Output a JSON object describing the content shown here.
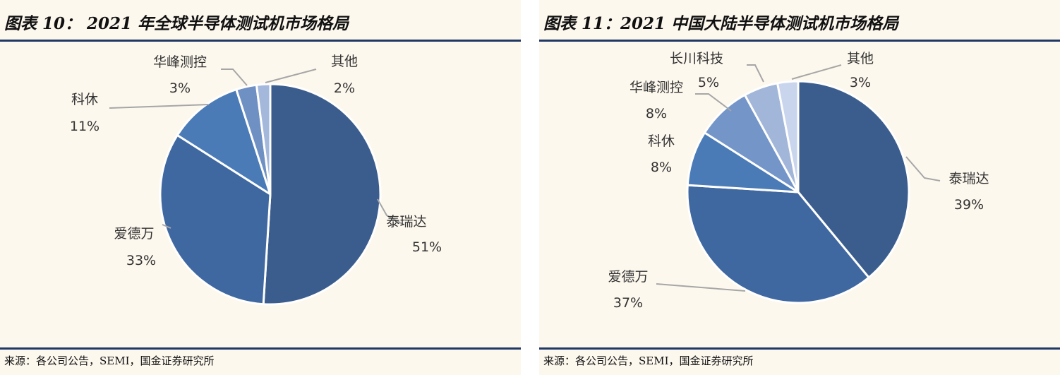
{
  "figures": [
    {
      "title": "图表 10：  2021 年全球半导体测试机市场格局",
      "source": "来源：各公司公告，SEMI，国金证券研究所"
    },
    {
      "title": "图表 11：2021 中国大陆半导体测试机市场格局",
      "source": "来源：各公司公告，SEMI，国金证券研究所"
    }
  ],
  "chart_data": [
    {
      "type": "pie",
      "start_angle": "12 o'clock",
      "direction": "clockwise",
      "slices": [
        {
          "label": "泰瑞达",
          "value": 51,
          "display": "51%",
          "color": "#3b5d8d"
        },
        {
          "label": "爱德万",
          "value": 33,
          "display": "33%",
          "color": "#3f67a0"
        },
        {
          "label": "科休",
          "value": 11,
          "display": "11%",
          "color": "#4a7bb7"
        },
        {
          "label": "华峰测控",
          "value": 3,
          "display": "3%",
          "color": "#6f90c3"
        },
        {
          "label": "其他",
          "value": 2,
          "display": "2%",
          "color": "#a4b8dc"
        }
      ]
    },
    {
      "type": "pie",
      "start_angle": "12 o'clock",
      "direction": "clockwise",
      "slices": [
        {
          "label": "泰瑞达",
          "value": 39,
          "display": "39%",
          "color": "#3b5d8d"
        },
        {
          "label": "爱德万",
          "value": 37,
          "display": "37%",
          "color": "#3f67a0"
        },
        {
          "label": "科休",
          "value": 8,
          "display": "8%",
          "color": "#4a7bb7"
        },
        {
          "label": "华峰测控",
          "value": 8,
          "display": "8%",
          "color": "#7395c8"
        },
        {
          "label": "长川科技",
          "value": 5,
          "display": "5%",
          "color": "#a2b6da"
        },
        {
          "label": "其他",
          "value": 3,
          "display": "3%",
          "color": "#c9d5ec"
        }
      ]
    }
  ]
}
